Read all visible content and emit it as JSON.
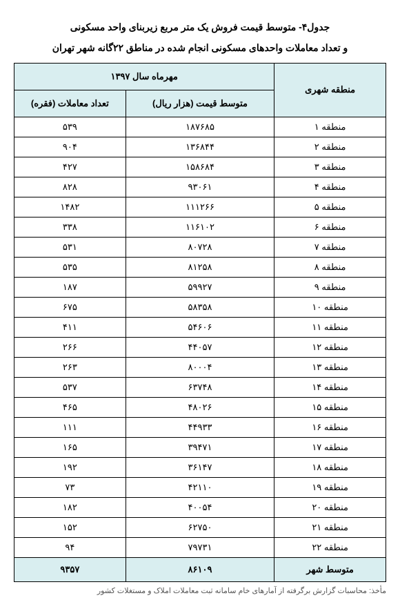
{
  "title_line1": "جدول۴- متوسط قیمت فروش یک متر مربع زیربنای واحد مسکونی",
  "title_line2": "و تعداد معاملات واحدهای مسکونی انجام شده در مناطق ۲۲گانه شهر تهران",
  "period_label": "مهرماه سال ۱۳۹۷",
  "columns": {
    "region": "منطقه شهری",
    "price": "متوسط قیمت (هزار ریال)",
    "count": "تعداد معاملات (فقره)"
  },
  "rows": [
    {
      "region": "منطقه ۱",
      "price": "۱۸۷۶۸۵",
      "count": "۵۳۹"
    },
    {
      "region": "منطقه ۲",
      "price": "۱۳۶۸۴۴",
      "count": "۹۰۴"
    },
    {
      "region": "منطقه ۳",
      "price": "۱۵۸۶۸۴",
      "count": "۴۲۷"
    },
    {
      "region": "منطقه ۴",
      "price": "۹۳۰۶۱",
      "count": "۸۲۸"
    },
    {
      "region": "منطقه ۵",
      "price": "۱۱۱۲۶۶",
      "count": "۱۴۸۲"
    },
    {
      "region": "منطقه ۶",
      "price": "۱۱۶۱۰۲",
      "count": "۳۳۸"
    },
    {
      "region": "منطقه ۷",
      "price": "۸۰۷۲۸",
      "count": "۵۳۱"
    },
    {
      "region": "منطقه ۸",
      "price": "۸۱۲۵۸",
      "count": "۵۳۵"
    },
    {
      "region": "منطقه ۹",
      "price": "۵۹۹۲۷",
      "count": "۱۸۷"
    },
    {
      "region": "منطقه ۱۰",
      "price": "۵۸۳۵۸",
      "count": "۶۷۵"
    },
    {
      "region": "منطقه ۱۱",
      "price": "۵۴۶۰۶",
      "count": "۴۱۱"
    },
    {
      "region": "منطقه ۱۲",
      "price": "۴۴۰۵۷",
      "count": "۲۶۶"
    },
    {
      "region": "منطقه ۱۳",
      "price": "۸۰۰۰۴",
      "count": "۲۶۳"
    },
    {
      "region": "منطقه ۱۴",
      "price": "۶۳۷۴۸",
      "count": "۵۳۷"
    },
    {
      "region": "منطقه ۱۵",
      "price": "۴۸۰۲۶",
      "count": "۴۶۵"
    },
    {
      "region": "منطقه ۱۶",
      "price": "۴۴۹۳۳",
      "count": "۱۱۱"
    },
    {
      "region": "منطقه ۱۷",
      "price": "۳۹۴۷۱",
      "count": "۱۶۵"
    },
    {
      "region": "منطقه ۱۸",
      "price": "۳۶۱۴۷",
      "count": "۱۹۲"
    },
    {
      "region": "منطقه ۱۹",
      "price": "۴۲۱۱۰",
      "count": "۷۳"
    },
    {
      "region": "منطقه ۲۰",
      "price": "۴۰۰۵۴",
      "count": "۱۸۲"
    },
    {
      "region": "منطقه ۲۱",
      "price": "۶۲۷۵۰",
      "count": "۱۵۲"
    },
    {
      "region": "منطقه ۲۲",
      "price": "۷۹۷۳۱",
      "count": "۹۴"
    }
  ],
  "footer": {
    "region": "متوسط شهر",
    "price": "۸۶۱۰۹",
    "count": "۹۳۵۷"
  },
  "source": "مأخذ: محاسبات گزارش برگرفته از آمارهای خام سامانه ثبت معاملات املاک و مستغلات کشور",
  "style": {
    "header_bg": "#d9eef0",
    "border_color": "#000000",
    "body_bg": "#ffffff",
    "font_family": "Tahoma",
    "title_fontsize": 14,
    "body_fontsize": 13,
    "source_fontsize": 11,
    "source_color": "#555555"
  }
}
